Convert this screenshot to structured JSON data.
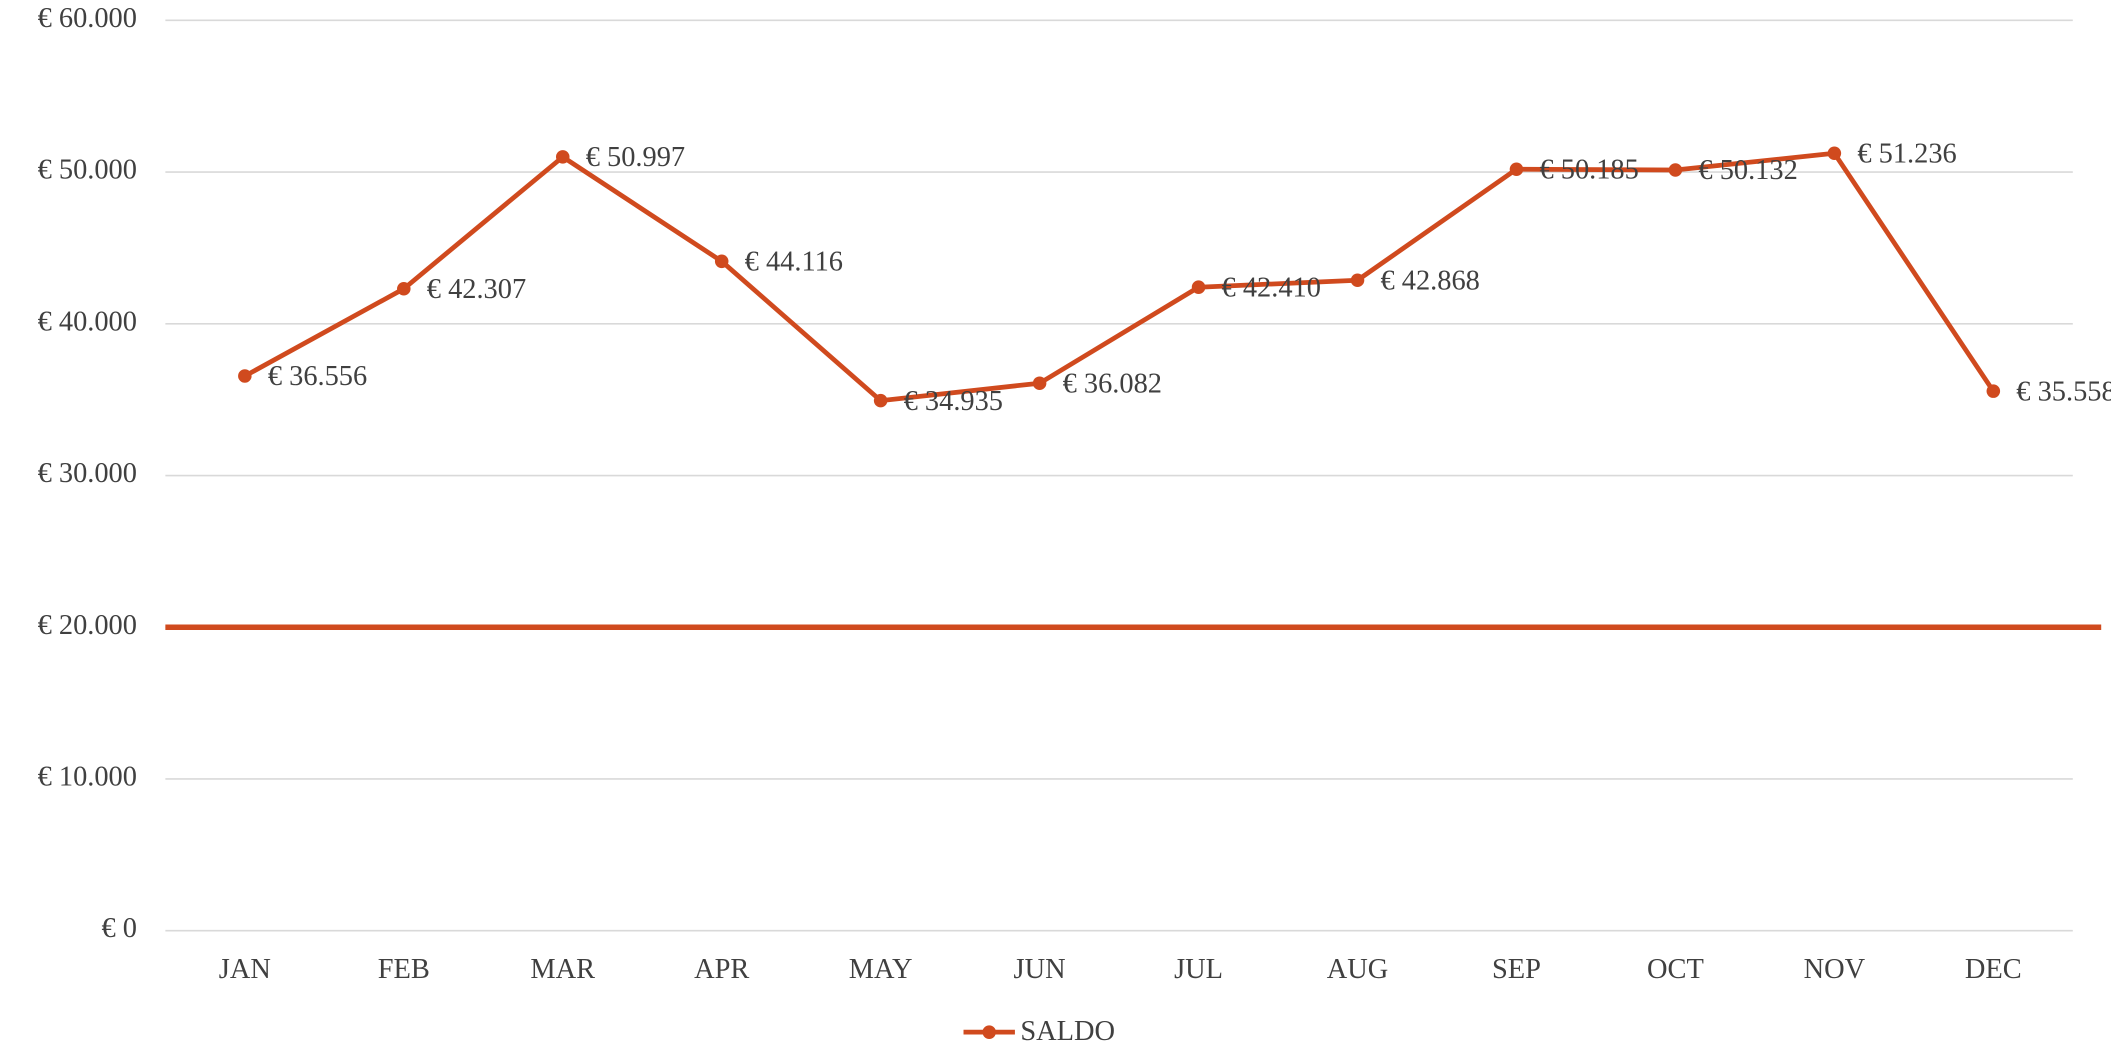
{
  "chart_data": {
    "type": "line",
    "categories": [
      "JAN",
      "FEB",
      "MAR",
      "APR",
      "MAY",
      "JUN",
      "JUL",
      "AUG",
      "SEP",
      "OCT",
      "NOV",
      "DEC"
    ],
    "series": [
      {
        "name": "SALDO",
        "color": "#d04a1e",
        "values": [
          36556,
          42307,
          50997,
          44116,
          34935,
          36082,
          42410,
          42868,
          50185,
          50132,
          51236,
          35558
        ],
        "value_labels": [
          "€ 36.556",
          "€ 42.307",
          "€ 50.997",
          "€ 44.116",
          "€ 34.935",
          "€ 36.082",
          "€ 42.410",
          "€ 42.868",
          "€ 50.185",
          "€ 50.132",
          "€ 51.236",
          "€ 35.558"
        ]
      }
    ],
    "reference_line": {
      "value": 20000,
      "color": "#d04a1e"
    },
    "ylim": [
      0,
      60000
    ],
    "yticks": [
      {
        "value": 0,
        "label": "€ 0"
      },
      {
        "value": 10000,
        "label": "€ 10.000"
      },
      {
        "value": 20000,
        "label": "€ 20.000"
      },
      {
        "value": 30000,
        "label": "€ 30.000"
      },
      {
        "value": 40000,
        "label": "€ 40.000"
      },
      {
        "value": 50000,
        "label": "€ 50.000"
      },
      {
        "value": 60000,
        "label": "€ 60.000"
      }
    ],
    "grid": true,
    "legend": "bottom"
  }
}
